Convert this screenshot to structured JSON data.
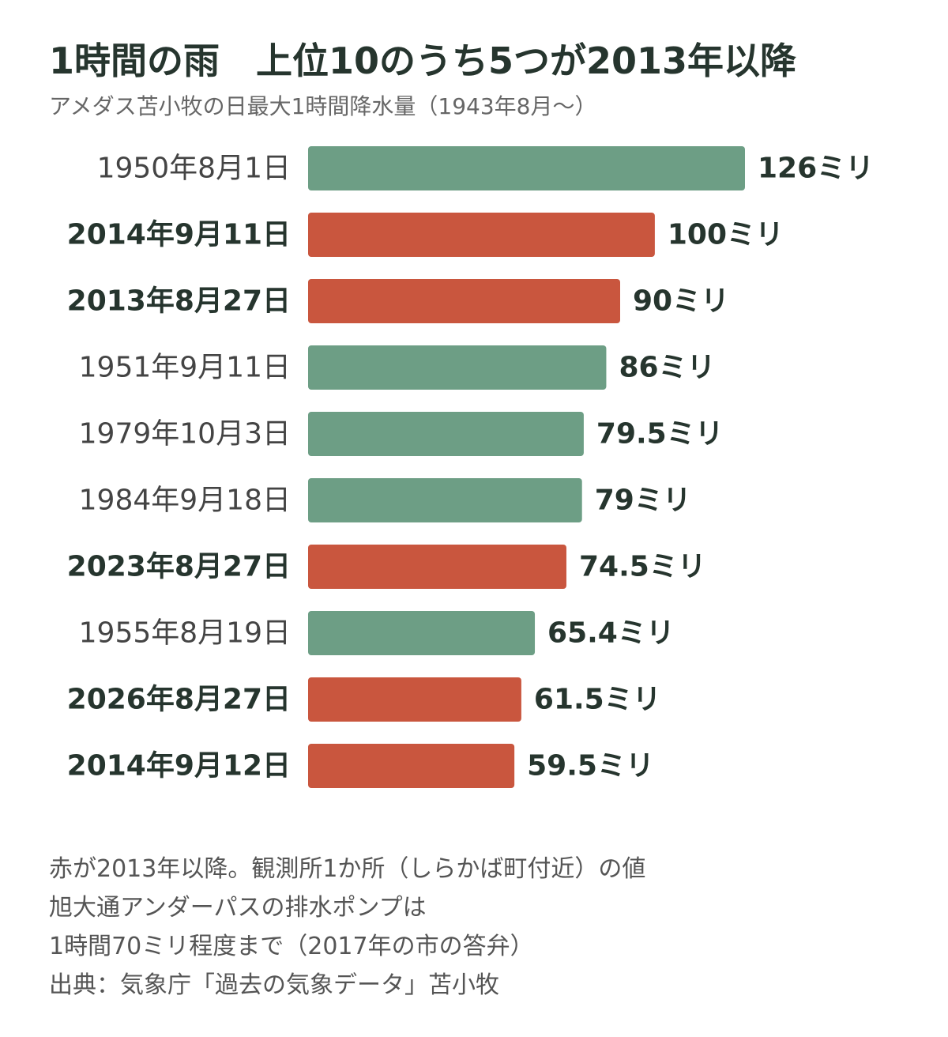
{
  "title": "1時間の雨　上位10のうち5つが2013年以降",
  "subtitle": "アメダス苫小牧の日最大1時間降水量（1943年8月～）",
  "colors": {
    "pre2013": "#6d9e85",
    "since2013": "#c9563e",
    "text": "#26352e",
    "muted": "#555555"
  },
  "chart_data": {
    "type": "bar",
    "orientation": "horizontal",
    "categories": [
      "1950年8月1日",
      "2014年9月11日",
      "2013年8月27日",
      "1951年9月11日",
      "1979年10月3日",
      "1984年9月18日",
      "2023年8月27日",
      "1955年8月19日",
      "2026年8月27日",
      "2014年9月12日"
    ],
    "values": [
      126,
      100,
      90,
      86,
      79.5,
      79,
      74.5,
      65.4,
      61.5,
      59.5
    ],
    "value_labels": [
      "126ミリ",
      "100ミリ",
      "90ミリ",
      "86ミリ",
      "79.5ミリ",
      "79ミリ",
      "74.5ミリ",
      "65.4ミリ",
      "61.5ミリ",
      "59.5ミリ"
    ],
    "since2013": [
      false,
      true,
      true,
      false,
      false,
      false,
      true,
      false,
      true,
      true
    ],
    "unit": "ミリ",
    "xlim": [
      0,
      126
    ],
    "grid": false,
    "legend": "none"
  },
  "notes": [
    "赤が2013年以降。観測所1か所（しらかば町付近）の値",
    "旭大通アンダーパスの排水ポンプは",
    "1時間70ミリ程度まで（2017年の市の答弁）",
    "出典：気象庁「過去の気象データ」苫小牧"
  ]
}
